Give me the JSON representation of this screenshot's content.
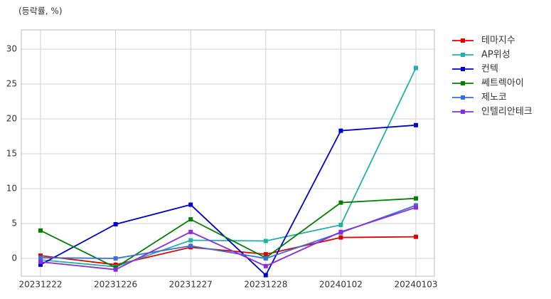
{
  "chart_data": {
    "type": "line",
    "title": "(등락률, %)",
    "categories": [
      "20231222",
      "20231226",
      "20231227",
      "20231228",
      "20240102",
      "20240103"
    ],
    "series": [
      {
        "name": "테마지수",
        "color": "#e00000",
        "values": [
          0.4,
          -0.9,
          1.6,
          0.6,
          3.0,
          3.1
        ]
      },
      {
        "name": "AP위성",
        "color": "#20b2aa",
        "values": [
          -0.2,
          -1.2,
          2.6,
          2.5,
          4.8,
          27.3
        ]
      },
      {
        "name": "컨텍",
        "color": "#0000cd",
        "values": [
          -0.9,
          4.9,
          7.7,
          -2.4,
          18.3,
          19.1
        ]
      },
      {
        "name": "쎄트렉아이",
        "color": "#008000",
        "values": [
          4.0,
          -1.3,
          5.6,
          0.1,
          8.0,
          8.6
        ]
      },
      {
        "name": "제노코",
        "color": "#3a6fd8",
        "values": [
          0.1,
          0.0,
          1.8,
          0.0,
          3.7,
          7.6
        ]
      },
      {
        "name": "인텔리안테크",
        "color": "#8a2be2",
        "values": [
          -0.5,
          -1.6,
          3.8,
          -1.1,
          3.8,
          7.3
        ]
      }
    ],
    "ylim": [
      -2.55,
      32.75
    ],
    "yticks": [
      0,
      5,
      10,
      15,
      20,
      25,
      30
    ],
    "grid": true,
    "legend": "outside-right"
  }
}
